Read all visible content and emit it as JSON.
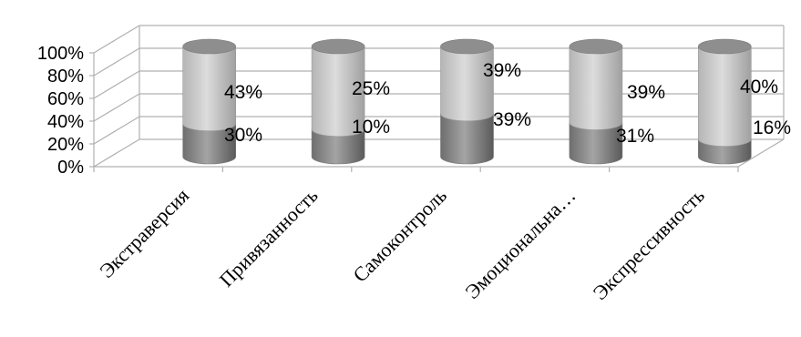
{
  "chart_data": {
    "type": "bar",
    "stacked": true,
    "style": "3d-cylinder",
    "categories": [
      "Экстраверсия",
      "Привязанность",
      "Самоконтроль",
      "Эмоциональна…",
      "Экспрессивность"
    ],
    "series": [
      {
        "values": [
          30,
          25,
          39,
          31,
          16
        ],
        "color": "#8c8c8c"
      },
      {
        "values": [
          43,
          10,
          39,
          39,
          40
        ],
        "color": "#c8c8c8"
      }
    ],
    "y_ticks": [
      "0%",
      "20%",
      "40%",
      "60%",
      "80%",
      "100%"
    ],
    "ylim": [
      0,
      100
    ],
    "grid": true,
    "legend": "none",
    "data_labels": [
      {
        "text": "43%"
      },
      {
        "text": "30%"
      },
      {
        "text": "25%"
      },
      {
        "text": "10%"
      },
      {
        "text": "39%"
      },
      {
        "text": "39%"
      },
      {
        "text": "39%"
      },
      {
        "text": "31%"
      },
      {
        "text": "40%"
      },
      {
        "text": "16%"
      }
    ],
    "title": "",
    "xlabel": "",
    "ylabel": ""
  }
}
